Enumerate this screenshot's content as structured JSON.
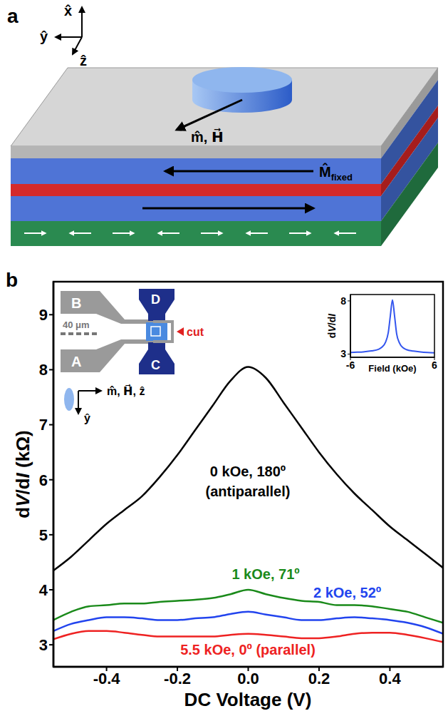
{
  "panel_a": {
    "letter": "a",
    "axes": [
      "x̂",
      "ŷ",
      "ẑ"
    ],
    "magnet_label": "m̂, H⃗",
    "fixed_label": "M̂",
    "fixed_subscript": "fixed"
  },
  "panel_b_device": {
    "letter": "b",
    "pads": [
      "A",
      "B",
      "C",
      "D"
    ],
    "scale_bar": "40 μm",
    "cut": "cut",
    "axes": [
      "m̂, H⃗, ẑ",
      "ŷ"
    ]
  },
  "chart_data": [
    {
      "type": "line",
      "x_label": "DC Voltage (V)",
      "y_label": "dV/dI (kΩ)",
      "x": [
        -0.55,
        -0.5,
        -0.45,
        -0.4,
        -0.35,
        -0.3,
        -0.25,
        -0.2,
        -0.15,
        -0.1,
        -0.05,
        0,
        0.05,
        0.1,
        0.15,
        0.2,
        0.25,
        0.3,
        0.35,
        0.4,
        0.45,
        0.5,
        0.55
      ],
      "series": [
        {
          "name": "0 kOe, 180º (antiparallel)",
          "color": "#000000",
          "values": [
            4.35,
            4.6,
            4.9,
            5.2,
            5.45,
            5.7,
            6.05,
            6.45,
            6.9,
            7.35,
            7.8,
            8.05,
            7.85,
            7.4,
            6.95,
            6.5,
            6.1,
            5.75,
            5.45,
            5.15,
            4.9,
            4.65,
            4.4
          ]
        },
        {
          "name": "1 kOe, 71º",
          "color": "#1a8a1a",
          "values": [
            3.45,
            3.6,
            3.7,
            3.72,
            3.75,
            3.75,
            3.78,
            3.8,
            3.82,
            3.85,
            3.92,
            4.0,
            3.92,
            3.85,
            3.8,
            3.78,
            3.72,
            3.72,
            3.7,
            3.65,
            3.6,
            3.5,
            3.4
          ]
        },
        {
          "name": "2 kOe, 52º",
          "color": "#2244ee",
          "values": [
            3.25,
            3.38,
            3.45,
            3.5,
            3.5,
            3.48,
            3.45,
            3.45,
            3.48,
            3.5,
            3.56,
            3.6,
            3.55,
            3.5,
            3.45,
            3.45,
            3.48,
            3.5,
            3.48,
            3.45,
            3.4,
            3.32,
            3.2
          ]
        },
        {
          "name": "5.5 kOe, 0º (parallel)",
          "color": "#ee2222",
          "values": [
            3.1,
            3.2,
            3.25,
            3.25,
            3.22,
            3.18,
            3.15,
            3.15,
            3.15,
            3.15,
            3.18,
            3.2,
            3.18,
            3.15,
            3.12,
            3.12,
            3.15,
            3.2,
            3.22,
            3.22,
            3.18,
            3.12,
            3.05
          ]
        }
      ],
      "xlim": [
        -0.55,
        0.55
      ],
      "xticks": [
        -0.4,
        -0.2,
        {
          "value": 0,
          "label": "0.0"
        },
        0.2,
        0.4
      ],
      "ylim": [
        2.6,
        9.6
      ],
      "yticks": [
        3,
        4,
        5,
        6,
        7,
        8,
        9
      ]
    },
    {
      "type": "line",
      "x_label": "Field (kOe)",
      "y_label": "dV/dI",
      "x": [
        -6,
        -5,
        -4,
        -3,
        -2,
        -1.5,
        -1,
        -0.6,
        -0.3,
        0,
        0.3,
        0.6,
        1,
        1.5,
        2,
        3,
        4,
        5,
        6
      ],
      "series": [
        {
          "color": "#3355ee",
          "values": [
            3.15,
            3.18,
            3.22,
            3.3,
            3.45,
            3.65,
            4.1,
            5.0,
            6.6,
            8.1,
            6.6,
            4.9,
            4.05,
            3.6,
            3.42,
            3.28,
            3.2,
            3.15,
            3.12
          ]
        }
      ],
      "xlim": [
        -6,
        6
      ],
      "xticks": [
        -6,
        6
      ],
      "ylim": [
        2.7,
        8.6
      ],
      "yticks": [
        3,
        8
      ]
    }
  ]
}
